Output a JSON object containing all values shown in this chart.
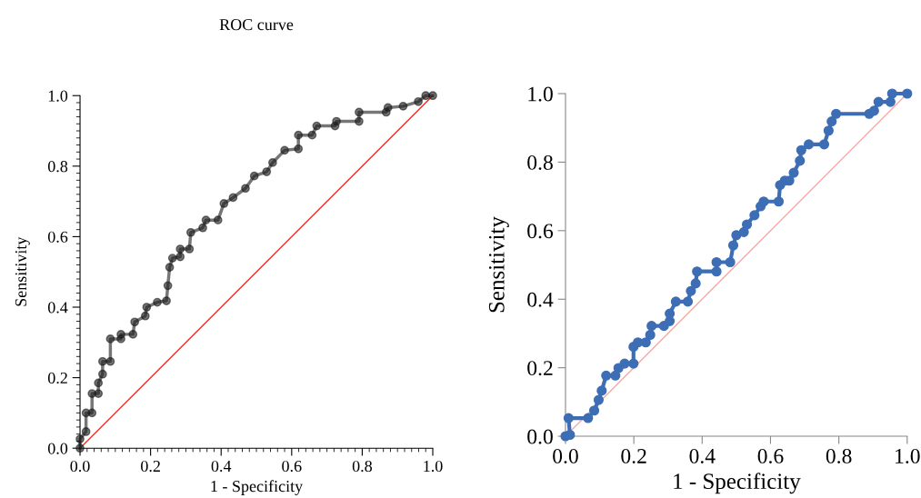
{
  "chart_data": [
    {
      "type": "line",
      "title": "ROC curve",
      "xlabel": "1 - Specificity",
      "ylabel": "Sensitivity",
      "marker": "circle",
      "xlim": [
        0,
        1
      ],
      "ylim": [
        0,
        1
      ],
      "xticks": [
        {
          "value": 0,
          "label": "0.0"
        },
        {
          "value": 0.2,
          "label": "0.2"
        },
        {
          "value": 0.4,
          "label": "0.4"
        },
        {
          "value": 0.6,
          "label": "0.6"
        },
        {
          "value": 0.8,
          "label": "0.8"
        },
        {
          "value": 1,
          "label": "1.0"
        },
        {
          "value": 0.02,
          "label": null
        },
        {
          "value": 0.04,
          "label": null
        },
        {
          "value": 0.06,
          "label": null
        },
        {
          "value": 0.08,
          "label": null
        },
        {
          "value": 0.1,
          "label": null
        },
        {
          "value": 0.12,
          "label": null
        },
        {
          "value": 0.14,
          "label": null
        },
        {
          "value": 0.16,
          "label": null
        },
        {
          "value": 0.18,
          "label": null
        },
        {
          "value": 0.22,
          "label": null
        },
        {
          "value": 0.24,
          "label": null
        },
        {
          "value": 0.26,
          "label": null
        },
        {
          "value": 0.28,
          "label": null
        },
        {
          "value": 0.3,
          "label": null
        },
        {
          "value": 0.32,
          "label": null
        },
        {
          "value": 0.34,
          "label": null
        },
        {
          "value": 0.36,
          "label": null
        },
        {
          "value": 0.38,
          "label": null
        },
        {
          "value": 0.42,
          "label": null
        },
        {
          "value": 0.44,
          "label": null
        },
        {
          "value": 0.46,
          "label": null
        },
        {
          "value": 0.48,
          "label": null
        },
        {
          "value": 0.5,
          "label": null
        },
        {
          "value": 0.52,
          "label": null
        },
        {
          "value": 0.54,
          "label": null
        },
        {
          "value": 0.56,
          "label": null
        },
        {
          "value": 0.58,
          "label": null
        },
        {
          "value": 0.62,
          "label": null
        },
        {
          "value": 0.64,
          "label": null
        },
        {
          "value": 0.66,
          "label": null
        },
        {
          "value": 0.68,
          "label": null
        },
        {
          "value": 0.7,
          "label": null
        },
        {
          "value": 0.72,
          "label": null
        },
        {
          "value": 0.74,
          "label": null
        },
        {
          "value": 0.76,
          "label": null
        },
        {
          "value": 0.78,
          "label": null
        },
        {
          "value": 0.82,
          "label": null
        },
        {
          "value": 0.84,
          "label": null
        },
        {
          "value": 0.86,
          "label": null
        },
        {
          "value": 0.88,
          "label": null
        },
        {
          "value": 0.9,
          "label": null
        },
        {
          "value": 0.92,
          "label": null
        },
        {
          "value": 0.94,
          "label": null
        },
        {
          "value": 0.96,
          "label": null
        },
        {
          "value": 0.98,
          "label": null
        }
      ],
      "yticks": [
        {
          "value": 0,
          "label": "0.0"
        },
        {
          "value": 0.2,
          "label": "0.2"
        },
        {
          "value": 0.4,
          "label": "0.4"
        },
        {
          "value": 0.6,
          "label": "0.6"
        },
        {
          "value": 0.8,
          "label": "0.8"
        },
        {
          "value": 1,
          "label": "1.0"
        },
        {
          "value": 0.02,
          "label": null
        },
        {
          "value": 0.04,
          "label": null
        },
        {
          "value": 0.06,
          "label": null
        },
        {
          "value": 0.08,
          "label": null
        },
        {
          "value": 0.1,
          "label": null
        },
        {
          "value": 0.12,
          "label": null
        },
        {
          "value": 0.14,
          "label": null
        },
        {
          "value": 0.16,
          "label": null
        },
        {
          "value": 0.18,
          "label": null
        },
        {
          "value": 0.22,
          "label": null
        },
        {
          "value": 0.24,
          "label": null
        },
        {
          "value": 0.26,
          "label": null
        },
        {
          "value": 0.28,
          "label": null
        },
        {
          "value": 0.3,
          "label": null
        },
        {
          "value": 0.32,
          "label": null
        },
        {
          "value": 0.34,
          "label": null
        },
        {
          "value": 0.36,
          "label": null
        },
        {
          "value": 0.38,
          "label": null
        },
        {
          "value": 0.42,
          "label": null
        },
        {
          "value": 0.44,
          "label": null
        },
        {
          "value": 0.46,
          "label": null
        },
        {
          "value": 0.48,
          "label": null
        },
        {
          "value": 0.5,
          "label": null
        },
        {
          "value": 0.52,
          "label": null
        },
        {
          "value": 0.54,
          "label": null
        },
        {
          "value": 0.56,
          "label": null
        },
        {
          "value": 0.58,
          "label": null
        },
        {
          "value": 0.62,
          "label": null
        },
        {
          "value": 0.64,
          "label": null
        },
        {
          "value": 0.66,
          "label": null
        },
        {
          "value": 0.68,
          "label": null
        },
        {
          "value": 0.7,
          "label": null
        },
        {
          "value": 0.72,
          "label": null
        },
        {
          "value": 0.74,
          "label": null
        },
        {
          "value": 0.76,
          "label": null
        },
        {
          "value": 0.78,
          "label": null
        },
        {
          "value": 0.82,
          "label": null
        },
        {
          "value": 0.84,
          "label": null
        },
        {
          "value": 0.86,
          "label": null
        },
        {
          "value": 0.88,
          "label": null
        },
        {
          "value": 0.9,
          "label": null
        },
        {
          "value": 0.92,
          "label": null
        },
        {
          "value": 0.94,
          "label": null
        },
        {
          "value": 0.96,
          "label": null
        },
        {
          "value": 0.98,
          "label": null
        }
      ],
      "series": [
        {
          "color": "#e8321e",
          "marker": "none",
          "x": [
            0,
            1
          ],
          "values": [
            0,
            1
          ]
        },
        {
          "color": "#1a1a1a",
          "x": [
            0,
            0,
            0.017,
            0.017,
            0.034,
            0.034,
            0.052,
            0.052,
            0.064,
            0.064,
            0.086,
            0.086,
            0.116,
            0.116,
            0.15,
            0.155,
            0.185,
            0.189,
            0.219,
            0.245,
            0.249,
            0.254,
            0.262,
            0.284,
            0.284,
            0.31,
            0.314,
            0.348,
            0.357,
            0.391,
            0.408,
            0.434,
            0.469,
            0.494,
            0.529,
            0.546,
            0.58,
            0.619,
            0.619,
            0.658,
            0.671,
            0.723,
            0.727,
            0.791,
            0.791,
            0.868,
            0.873,
            0.916,
            0.959,
            0.98,
            1
          ],
          "values": [
            0,
            0.026,
            0.047,
            0.1,
            0.1,
            0.155,
            0.155,
            0.185,
            0.21,
            0.246,
            0.246,
            0.31,
            0.31,
            0.323,
            0.323,
            0.358,
            0.375,
            0.4,
            0.414,
            0.418,
            0.461,
            0.513,
            0.539,
            0.543,
            0.565,
            0.565,
            0.612,
            0.625,
            0.647,
            0.647,
            0.694,
            0.711,
            0.737,
            0.772,
            0.784,
            0.81,
            0.845,
            0.849,
            0.888,
            0.888,
            0.914,
            0.914,
            0.927,
            0.927,
            0.953,
            0.953,
            0.966,
            0.97,
            0.983,
            1,
            1
          ]
        }
      ]
    },
    {
      "type": "line",
      "xlabel": "1 - Specificity",
      "ylabel": "Sensitivity",
      "marker": "circle",
      "xlim": [
        0,
        1
      ],
      "ylim": [
        0,
        1
      ],
      "xticks": [
        {
          "value": 0,
          "label": "0.0"
        },
        {
          "value": 0.2,
          "label": "0.2"
        },
        {
          "value": 0.4,
          "label": "0.4"
        },
        {
          "value": 0.6,
          "label": "0.6"
        },
        {
          "value": 0.8,
          "label": "0.8"
        },
        {
          "value": 1,
          "label": "1.0"
        }
      ],
      "yticks": [
        {
          "value": 0,
          "label": "0.0"
        },
        {
          "value": 0.2,
          "label": "0.2"
        },
        {
          "value": 0.4,
          "label": "0.4"
        },
        {
          "value": 0.6,
          "label": "0.6"
        },
        {
          "value": 0.8,
          "label": "0.8"
        },
        {
          "value": 1,
          "label": "1.0"
        }
      ],
      "series": [
        {
          "color": "#f4aaa5",
          "marker": "none",
          "x": [
            0,
            1
          ],
          "values": [
            0,
            1
          ]
        },
        {
          "color": "#3d6eb5",
          "x": [
            0,
            0.013,
            0.009,
            0.066,
            0.084,
            0.097,
            0.106,
            0.119,
            0.146,
            0.155,
            0.173,
            0.199,
            0.199,
            0.212,
            0.235,
            0.248,
            0.252,
            0.288,
            0.305,
            0.305,
            0.323,
            0.358,
            0.367,
            0.381,
            0.385,
            0.442,
            0.442,
            0.482,
            0.491,
            0.5,
            0.522,
            0.531,
            0.553,
            0.571,
            0.58,
            0.624,
            0.628,
            0.642,
            0.655,
            0.668,
            0.686,
            0.69,
            0.712,
            0.757,
            0.77,
            0.779,
            0.792,
            0.889,
            0.903,
            0.916,
            0.951,
            0.956,
            1
          ],
          "values": [
            0,
            0.004,
            0.053,
            0.053,
            0.075,
            0.106,
            0.133,
            0.177,
            0.177,
            0.199,
            0.212,
            0.212,
            0.261,
            0.274,
            0.274,
            0.296,
            0.322,
            0.322,
            0.336,
            0.358,
            0.393,
            0.393,
            0.424,
            0.446,
            0.481,
            0.481,
            0.508,
            0.508,
            0.557,
            0.587,
            0.596,
            0.618,
            0.645,
            0.671,
            0.685,
            0.685,
            0.733,
            0.746,
            0.746,
            0.769,
            0.804,
            0.835,
            0.852,
            0.852,
            0.892,
            0.919,
            0.941,
            0.941,
            0.95,
            0.976,
            0.976,
            1,
            1
          ]
        }
      ]
    }
  ]
}
